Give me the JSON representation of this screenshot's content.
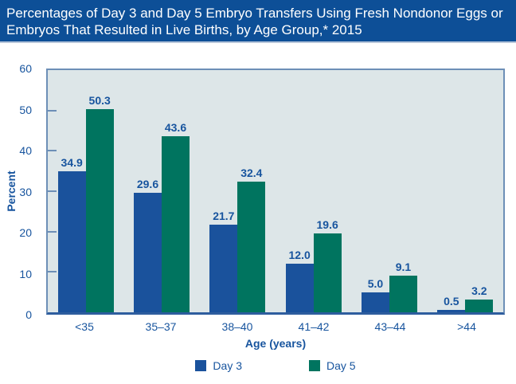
{
  "header": {
    "title": "Percentages of Day 3 and Day 5 Embryo Transfers Using Fresh Nondonor Eggs or Embryos That Resulted in Live Births, by Age Group,* 2015"
  },
  "chart_data": {
    "type": "bar",
    "title": "Percentages of Day 3 and Day 5 Embryo Transfers Using Fresh Nondonor Eggs or Embryos That Resulted in Live Births, by Age Group,* 2015",
    "categories": [
      "<35",
      "35–37",
      "38–40",
      "41–42",
      "43–44",
      ">44"
    ],
    "series": [
      {
        "name": "Day 3",
        "color": "#1a529c",
        "values": [
          34.9,
          29.6,
          21.7,
          12.0,
          5.0,
          0.5
        ]
      },
      {
        "name": "Day 5",
        "color": "#00745f",
        "values": [
          50.3,
          43.6,
          32.4,
          19.6,
          9.1,
          3.2
        ]
      }
    ],
    "xlabel": "Age (years)",
    "ylabel": "Percent",
    "ylim": [
      0,
      60
    ],
    "yticks": [
      0,
      10,
      20,
      30,
      40,
      50,
      60
    ],
    "grid": false,
    "value_labels": true,
    "legend_position": "bottom"
  },
  "colors": {
    "header_bg": "#0d4f97",
    "header_text": "#ffffff",
    "plot_bg": "#dde6e8",
    "axis_frame": "#6d8fb7",
    "axis_bottom": "#2e5d9e",
    "label_text": "#17549e",
    "day3_bar": "#1a529c",
    "day5_bar": "#00745f"
  }
}
